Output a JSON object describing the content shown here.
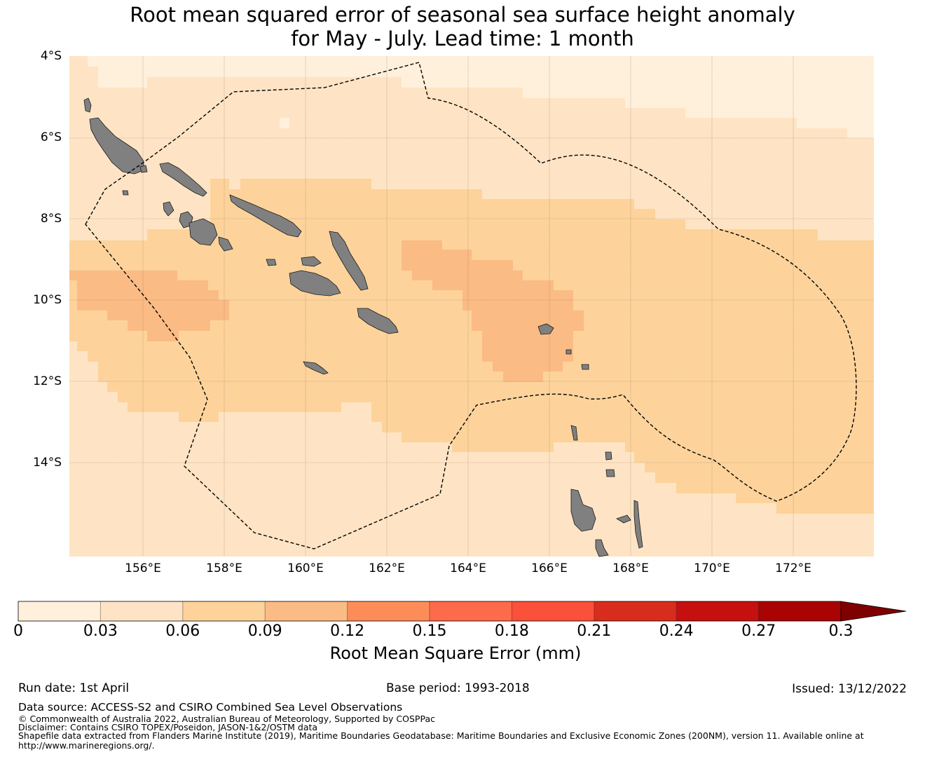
{
  "title": {
    "line1": "Root mean squared error of seasonal sea surface height anomaly",
    "line2": "for May - July. Lead time: 1 month"
  },
  "map": {
    "lat_labels": [
      "4°S",
      "6°S",
      "8°S",
      "10°S",
      "12°S",
      "14°S"
    ],
    "lon_labels": [
      "156°E",
      "158°E",
      "160°E",
      "162°E",
      "164°E",
      "166°E",
      "168°E",
      "170°E",
      "172°E"
    ],
    "land_color": "#808080",
    "boundary_style": "dashed black",
    "field_colors": {
      "level_0_03": "#fff0dc",
      "level_0_06": "#fee4c4",
      "level_0_09": "#fdd39b",
      "level_0_12": "#fbbb84"
    }
  },
  "colorbar": {
    "title": "Root Mean Square Error (mm)",
    "ticks": [
      "0",
      "0.03",
      "0.06",
      "0.09",
      "0.12",
      "0.15",
      "0.18",
      "0.21",
      "0.24",
      "0.27",
      "0.3"
    ],
    "colors": [
      "#fff0dc",
      "#fee4c4",
      "#fdd39b",
      "#fbbb84",
      "#fc8d59",
      "#fd6b4a",
      "#fb5039",
      "#d82d1d",
      "#c60f0f",
      "#aa0303"
    ],
    "extend_color": "#7f0000"
  },
  "footer": {
    "run_date": "Run date: 1st April",
    "base_period": "Base period: 1993-2018",
    "issued": "Issued: 13/12/2022",
    "data_source": "Data source: ACCESS-S2 and CSIRO Combined Sea Level Observations",
    "copyright": "© Commonwealth of Australia 2022, Australian Bureau of Meteorology, Supported by COSPPac",
    "disclaimer": "Disclaimer: Contains CSIRO TOPEX/Poseidon, JASON-1&2/OSTM data",
    "shapefile": "Shapefile data extracted from Flanders Marine Institute (2019), Maritime Boundaries Geodatabase: Maritime Boundaries and Exclusive Economic Zones (200NM), version 11. Available online at",
    "url": "http://www.marineregions.org/."
  }
}
